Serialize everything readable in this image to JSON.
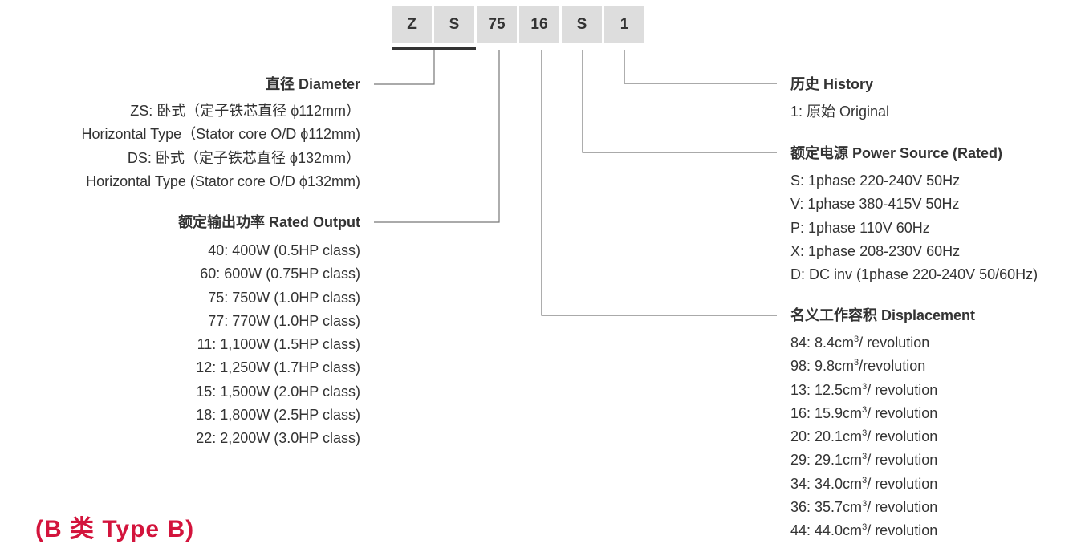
{
  "code": {
    "segments": [
      "Z",
      "S",
      "75",
      "16",
      "S",
      "1"
    ]
  },
  "diameter": {
    "title": "直径 Diameter",
    "items": [
      "ZS: 卧式（定子铁芯直径 ϕ112mm）",
      "Horizontal Type（Stator core O/D ϕ112mm)",
      "DS: 卧式（定子铁芯直径 ϕ132mm）",
      "Horizontal Type (Stator core O/D ϕ132mm)"
    ]
  },
  "rated_output": {
    "title": "额定输出功率 Rated Output",
    "items": [
      "40: 400W (0.5HP class)",
      "60: 600W (0.75HP class)",
      "75: 750W (1.0HP class)",
      "77: 770W (1.0HP class)",
      "11: 1,100W (1.5HP class)",
      "12: 1,250W (1.7HP class)",
      "15: 1,500W (2.0HP class)",
      "18: 1,800W (2.5HP class)",
      "22: 2,200W (3.0HP class)"
    ]
  },
  "history": {
    "title": "历史 History",
    "items": [
      "1: 原始 Original"
    ]
  },
  "power_source": {
    "title": "额定电源 Power Source (Rated)",
    "items": [
      "S: 1phase 220-240V 50Hz",
      "V: 1phase 380-415V 50Hz",
      "P: 1phase 110V 60Hz",
      "X: 1phase 208-230V 60Hz",
      "D: DC inv (1phase 220-240V 50/60Hz)"
    ]
  },
  "displacement": {
    "title": "名义工作容积 Displacement",
    "unit_sup": "3",
    "items": [
      {
        "pre": "84: 8.4cm",
        "post": "/ revolution"
      },
      {
        "pre": "98: 9.8cm",
        "post": "/revolution"
      },
      {
        "pre": "13: 12.5cm",
        "post": "/ revolution"
      },
      {
        "pre": "16: 15.9cm",
        "post": "/ revolution"
      },
      {
        "pre": "20: 20.1cm",
        "post": "/ revolution"
      },
      {
        "pre": "29: 29.1cm",
        "post": "/ revolution"
      },
      {
        "pre": "34: 34.0cm",
        "post": "/ revolution"
      },
      {
        "pre": "36: 35.7cm",
        "post": "/ revolution"
      },
      {
        "pre": "44: 44.0cm",
        "post": "/ revolution"
      }
    ]
  },
  "type_label": "(B 类  Type B)",
  "colors": {
    "accent": "#d3143c",
    "box": "#dddddd",
    "text": "#333333",
    "line": "#777777"
  }
}
